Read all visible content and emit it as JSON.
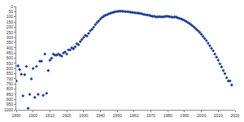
{
  "chart_data": {
    "type": "scatter",
    "x": [
      1890,
      1891,
      1892,
      1893,
      1894,
      1895,
      1896,
      1897,
      1898,
      1899,
      1900,
      1901,
      1902,
      1903,
      1904,
      1905,
      1906,
      1907,
      1908,
      1909,
      1910,
      1911,
      1912,
      1913,
      1914,
      1915,
      1916,
      1917,
      1918,
      1919,
      1920,
      1921,
      1922,
      1923,
      1924,
      1925,
      1926,
      1927,
      1928,
      1929,
      1930,
      1931,
      1932,
      1933,
      1934,
      1935,
      1936,
      1937,
      1938,
      1939,
      1940,
      1941,
      1942,
      1943,
      1944,
      1945,
      1946,
      1947,
      1948,
      1949,
      1950,
      1951,
      1952,
      1953,
      1954,
      1955,
      1956,
      1957,
      1958,
      1959,
      1960,
      1961,
      1962,
      1963,
      1964,
      1965,
      1966,
      1967,
      1968,
      1969,
      1970,
      1971,
      1972,
      1973,
      1974,
      1975,
      1976,
      1977,
      1978,
      1979,
      1980,
      1981,
      1982,
      1983,
      1984,
      1985,
      1986,
      1987,
      1988,
      1989,
      1990,
      1991,
      1992,
      1993,
      1994,
      1995,
      1996,
      1997,
      1998,
      1999,
      2000,
      2001,
      2002,
      2003,
      2004,
      2005,
      2006,
      2007,
      2008,
      2009,
      2010,
      2011,
      2012,
      2013,
      2014,
      2015,
      2016,
      2017,
      2018
    ],
    "values": [
      720,
      575,
      610,
      655,
      865,
      660,
      580,
      985,
      850,
      700,
      600,
      880,
      580,
      850,
      530,
      530,
      860,
      460,
      840,
      620,
      520,
      500,
      460,
      470,
      470,
      460,
      470,
      480,
      450,
      440,
      460,
      420,
      420,
      400,
      410,
      390,
      360,
      370,
      340,
      320,
      300,
      280,
      285,
      260,
      235,
      220,
      200,
      175,
      155,
      140,
      120,
      105,
      95,
      85,
      80,
      70,
      65,
      60,
      55,
      50,
      48,
      45,
      45,
      45,
      48,
      50,
      50,
      52,
      55,
      57,
      60,
      62,
      63,
      65,
      68,
      72,
      78,
      80,
      82,
      85,
      90,
      95,
      95,
      100,
      100,
      98,
      100,
      100,
      98,
      95,
      95,
      98,
      100,
      105,
      100,
      102,
      110,
      115,
      120,
      128,
      135,
      145,
      155,
      165,
      178,
      190,
      205,
      220,
      235,
      250,
      270,
      290,
      310,
      330,
      355,
      380,
      405,
      430,
      460,
      490,
      520,
      555,
      585,
      620,
      650,
      690,
      720,
      720,
      760
    ],
    "color": "#1f3a93",
    "marker": "diamond",
    "xlim": [
      1890,
      2020
    ],
    "xticks": [
      1890,
      1900,
      1910,
      1920,
      1930,
      1940,
      1950,
      1960,
      1970,
      1980,
      1990,
      2000,
      2010,
      2020
    ],
    "ylim": [
      1000,
      0
    ],
    "yticks": [
      0,
      50,
      100,
      150,
      200,
      250,
      300,
      350,
      400,
      450,
      500,
      550,
      600,
      650,
      700,
      750,
      800,
      850,
      900,
      950,
      1000
    ],
    "grid": false
  }
}
